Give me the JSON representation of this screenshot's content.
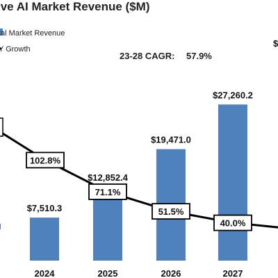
{
  "chart_data": {
    "type": "bar",
    "title": "ive AI Market Revenue ($M)",
    "legend": {
      "position": "top-left",
      "items": [
        "tal Market Revenue",
        "Y Growth"
      ]
    },
    "annotation": {
      "label": "23-28 CAGR:",
      "value": "57.9%"
    },
    "categories": [
      "2024",
      "2025",
      "2026",
      "2027"
    ],
    "series": [
      {
        "name": "tal Market Revenue",
        "type": "bar",
        "color": "#4f81bd",
        "values": [
          7510.3,
          12852.4,
          19471.0,
          27260.2
        ],
        "labels": [
          "$7,510.3",
          "$12,852.4",
          "$19,471.0",
          "$27,260.2"
        ]
      },
      {
        "name": "Y Growth",
        "type": "line",
        "color": "#000000",
        "values": [
          102.8,
          71.1,
          51.5,
          40.0
        ],
        "labels": [
          "102.8%",
          "71.1%",
          "51.5%",
          "40.0%"
        ]
      }
    ],
    "grid": false
  }
}
